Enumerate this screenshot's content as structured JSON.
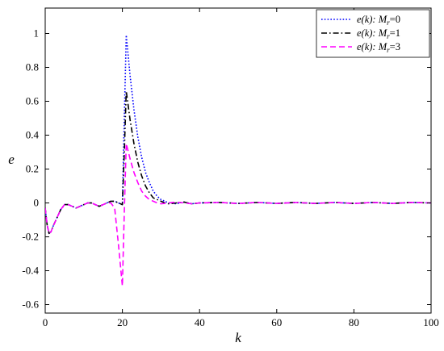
{
  "chart_data": {
    "type": "line",
    "xlabel": "k",
    "ylabel": "e",
    "xlim": [
      0,
      100
    ],
    "ylim": [
      -0.65,
      1.15
    ],
    "xticks": [
      0,
      20,
      40,
      60,
      80,
      100
    ],
    "yticks": [
      -0.6,
      -0.4,
      -0.2,
      0,
      0.2,
      0.4,
      0.6,
      0.8,
      1
    ],
    "xtick_labels": [
      "0",
      "20",
      "40",
      "60",
      "80",
      "100"
    ],
    "ytick_labels": [
      "-0.6",
      "-0.4",
      "-0.2",
      "0",
      "0.2",
      "0.4",
      "0.6",
      "0.8",
      "1"
    ],
    "grid": false,
    "legend_position": "top-right",
    "series": [
      {
        "name": "e(k): M_r=0",
        "label_func": "e(k):",
        "label_param": "M",
        "label_sub": "r",
        "label_val": "=0",
        "color": "#0000ff",
        "style": "dotted",
        "points": [
          [
            0,
            -0.03
          ],
          [
            0.5,
            -0.13
          ],
          [
            1,
            -0.18
          ],
          [
            1.5,
            -0.17
          ],
          [
            2,
            -0.14
          ],
          [
            3,
            -0.09
          ],
          [
            4,
            -0.04
          ],
          [
            5,
            -0.01
          ],
          [
            6,
            -0.01
          ],
          [
            7,
            -0.02
          ],
          [
            8,
            -0.03
          ],
          [
            9,
            -0.02
          ],
          [
            10,
            -0.01
          ],
          [
            11,
            0.0
          ],
          [
            12,
            0.0
          ],
          [
            13,
            -0.01
          ],
          [
            14,
            -0.02
          ],
          [
            15,
            -0.01
          ],
          [
            16,
            0.0
          ],
          [
            17,
            0.01
          ],
          [
            18,
            0.01
          ],
          [
            19,
            0.0
          ],
          [
            20,
            -0.01
          ],
          [
            20.5,
            0.5
          ],
          [
            21,
            0.99
          ],
          [
            22,
            0.75
          ],
          [
            23,
            0.55
          ],
          [
            24,
            0.39
          ],
          [
            25,
            0.27
          ],
          [
            26,
            0.18
          ],
          [
            27,
            0.12
          ],
          [
            28,
            0.07
          ],
          [
            29,
            0.04
          ],
          [
            30,
            0.02
          ],
          [
            31,
            0.01
          ],
          [
            32,
            0.0
          ],
          [
            34,
            -0.005
          ],
          [
            36,
            0.005
          ],
          [
            38,
            -0.005
          ],
          [
            40,
            0.0
          ],
          [
            45,
            0.003
          ],
          [
            50,
            -0.003
          ],
          [
            55,
            0.003
          ],
          [
            60,
            -0.003
          ],
          [
            65,
            0.003
          ],
          [
            70,
            -0.003
          ],
          [
            75,
            0.003
          ],
          [
            80,
            -0.003
          ],
          [
            85,
            0.003
          ],
          [
            90,
            -0.003
          ],
          [
            95,
            0.003
          ],
          [
            100,
            0.0
          ]
        ]
      },
      {
        "name": "e(k): M_r=1",
        "label_func": "e(k):",
        "label_param": "M",
        "label_sub": "r",
        "label_val": "=1",
        "color": "#000000",
        "style": "dashdot",
        "points": [
          [
            0,
            -0.03
          ],
          [
            0.5,
            -0.13
          ],
          [
            1,
            -0.18
          ],
          [
            1.5,
            -0.17
          ],
          [
            2,
            -0.14
          ],
          [
            3,
            -0.09
          ],
          [
            4,
            -0.04
          ],
          [
            5,
            -0.01
          ],
          [
            6,
            -0.01
          ],
          [
            7,
            -0.02
          ],
          [
            8,
            -0.03
          ],
          [
            9,
            -0.02
          ],
          [
            10,
            -0.01
          ],
          [
            11,
            0.0
          ],
          [
            12,
            0.0
          ],
          [
            13,
            -0.01
          ],
          [
            14,
            -0.02
          ],
          [
            15,
            -0.01
          ],
          [
            16,
            0.0
          ],
          [
            17,
            0.01
          ],
          [
            18,
            0.01
          ],
          [
            19,
            0.0
          ],
          [
            20,
            -0.01
          ],
          [
            20.5,
            0.3
          ],
          [
            21,
            0.66
          ],
          [
            22,
            0.49
          ],
          [
            23,
            0.35
          ],
          [
            24,
            0.24
          ],
          [
            25,
            0.16
          ],
          [
            26,
            0.1
          ],
          [
            27,
            0.06
          ],
          [
            28,
            0.03
          ],
          [
            29,
            0.02
          ],
          [
            30,
            0.01
          ],
          [
            31,
            0.0
          ],
          [
            32,
            -0.005
          ],
          [
            34,
            0.0
          ],
          [
            36,
            0.005
          ],
          [
            38,
            -0.005
          ],
          [
            40,
            0.0
          ],
          [
            45,
            0.003
          ],
          [
            50,
            -0.003
          ],
          [
            55,
            0.003
          ],
          [
            60,
            -0.003
          ],
          [
            65,
            0.003
          ],
          [
            70,
            -0.003
          ],
          [
            75,
            0.003
          ],
          [
            80,
            -0.003
          ],
          [
            85,
            0.003
          ],
          [
            90,
            -0.003
          ],
          [
            95,
            0.003
          ],
          [
            100,
            0.0
          ]
        ]
      },
      {
        "name": "e(k): M_r=3",
        "label_func": "e(k):",
        "label_param": "M",
        "label_sub": "r",
        "label_val": "=3",
        "color": "#ff00ff",
        "style": "dashed",
        "points": [
          [
            0,
            -0.03
          ],
          [
            0.5,
            -0.13
          ],
          [
            1,
            -0.18
          ],
          [
            1.5,
            -0.17
          ],
          [
            2,
            -0.14
          ],
          [
            3,
            -0.09
          ],
          [
            4,
            -0.04
          ],
          [
            5,
            -0.01
          ],
          [
            6,
            -0.01
          ],
          [
            7,
            -0.02
          ],
          [
            8,
            -0.03
          ],
          [
            9,
            -0.02
          ],
          [
            10,
            -0.01
          ],
          [
            11,
            0.0
          ],
          [
            12,
            0.0
          ],
          [
            13,
            -0.01
          ],
          [
            14,
            -0.02
          ],
          [
            15,
            -0.01
          ],
          [
            16,
            0.0
          ],
          [
            17,
            0.0
          ],
          [
            18,
            -0.03
          ],
          [
            19,
            -0.25
          ],
          [
            20,
            -0.49
          ],
          [
            20.5,
            -0.05
          ],
          [
            21,
            0.35
          ],
          [
            22,
            0.26
          ],
          [
            23,
            0.18
          ],
          [
            24,
            0.12
          ],
          [
            25,
            0.07
          ],
          [
            26,
            0.04
          ],
          [
            27,
            0.02
          ],
          [
            28,
            0.01
          ],
          [
            29,
            0.0
          ],
          [
            30,
            -0.005
          ],
          [
            32,
            0.0
          ],
          [
            34,
            0.005
          ],
          [
            36,
            0.0
          ],
          [
            38,
            -0.005
          ],
          [
            40,
            0.0
          ],
          [
            45,
            0.003
          ],
          [
            50,
            -0.003
          ],
          [
            55,
            0.003
          ],
          [
            60,
            -0.003
          ],
          [
            65,
            0.003
          ],
          [
            70,
            -0.003
          ],
          [
            75,
            0.003
          ],
          [
            80,
            -0.003
          ],
          [
            85,
            0.003
          ],
          [
            90,
            -0.003
          ],
          [
            95,
            0.003
          ],
          [
            100,
            0.0
          ]
        ]
      }
    ]
  }
}
